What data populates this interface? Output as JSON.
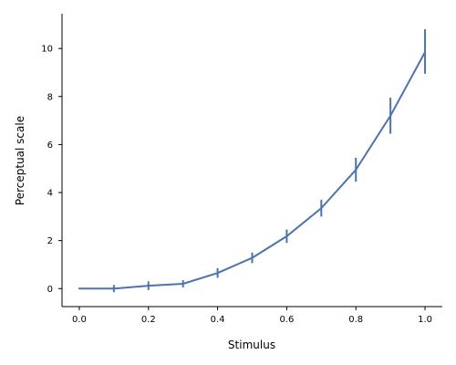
{
  "chart_data": {
    "type": "line",
    "title": "",
    "xlabel": "Stimulus",
    "ylabel": "Perceptual scale",
    "xlim": [
      -0.05,
      1.05
    ],
    "ylim": [
      -0.75,
      11.45
    ],
    "xticks": [
      0.0,
      0.2,
      0.4,
      0.6,
      0.8,
      1.0
    ],
    "xtick_labels": [
      "0.0",
      "0.2",
      "0.4",
      "0.6",
      "0.8",
      "1.0"
    ],
    "yticks": [
      0,
      2,
      4,
      6,
      8,
      10
    ],
    "ytick_labels": [
      "0",
      "2",
      "4",
      "6",
      "8",
      "10"
    ],
    "grid": false,
    "legend": "none",
    "color": "#4c72b0",
    "series": [
      {
        "x": [
          0.0,
          0.1,
          0.2,
          0.3,
          0.4,
          0.5,
          0.6,
          0.7,
          0.8,
          0.9,
          1.0
        ],
        "y": [
          0.0,
          0.0,
          0.12,
          0.2,
          0.65,
          1.28,
          2.18,
          3.35,
          4.95,
          7.2,
          9.85
        ],
        "yerr_low": [
          0.0,
          0.15,
          0.18,
          0.15,
          0.2,
          0.22,
          0.28,
          0.35,
          0.5,
          0.75,
          0.9
        ],
        "yerr_high": [
          0.0,
          0.15,
          0.18,
          0.15,
          0.2,
          0.22,
          0.28,
          0.35,
          0.5,
          0.75,
          0.95
        ]
      }
    ]
  }
}
